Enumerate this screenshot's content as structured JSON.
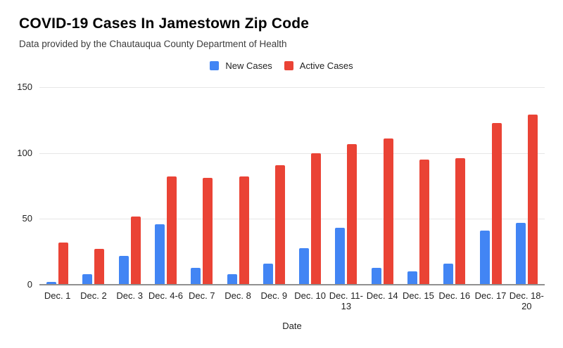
{
  "header": {
    "title": "COVID-19 Cases In Jamestown Zip Code",
    "subtitle": "Data provided by the Chautauqua County Department of Health"
  },
  "chart_data": {
    "type": "bar",
    "title": "COVID-19 Cases In Jamestown Zip Code",
    "subtitle": "Data provided by the Chautauqua County Department of Health",
    "xlabel": "Date",
    "ylabel": "",
    "ylim": [
      0,
      150
    ],
    "yticks": [
      0,
      50,
      100,
      150
    ],
    "grid": true,
    "legend_position": "top",
    "categories": [
      "Dec. 1",
      "Dec. 2",
      "Dec. 3",
      "Dec. 4-6",
      "Dec. 7",
      "Dec. 8",
      "Dec. 9",
      "Dec. 10",
      "Dec. 11-13",
      "Dec. 14",
      "Dec. 15",
      "Dec. 16",
      "Dec. 17",
      "Dec. 18-20"
    ],
    "category_display": [
      "Dec. 1",
      "Dec. 2",
      "Dec. 3",
      "Dec. 4-6",
      "Dec. 7",
      "Dec. 8",
      "Dec. 9",
      "Dec. 10",
      "Dec. 11-\n13",
      "Dec. 14",
      "Dec. 15",
      "Dec. 16",
      "Dec. 17",
      "Dec. 18-\n20"
    ],
    "series": [
      {
        "name": "New Cases",
        "color": "#4285F4",
        "values": [
          2,
          8,
          22,
          46,
          13,
          8,
          16,
          28,
          43,
          13,
          10,
          16,
          41,
          47
        ]
      },
      {
        "name": "Active Cases",
        "color": "#EA4335",
        "values": [
          32,
          27,
          52,
          82,
          81,
          82,
          91,
          100,
          107,
          111,
          95,
          96,
          123,
          129
        ]
      }
    ]
  },
  "colors": {
    "axis_line": "#909090",
    "gridline": "#e6e6e6",
    "label_text": "#222222"
  }
}
